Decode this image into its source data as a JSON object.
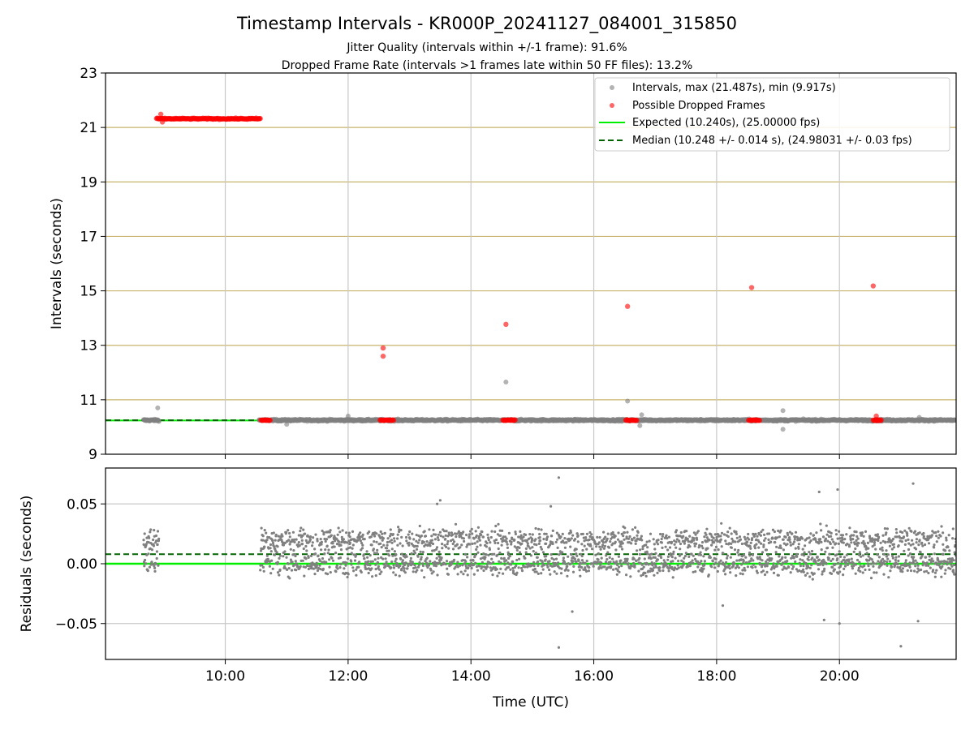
{
  "title": "Timestamp Intervals - KR000P_20241127_084001_315850",
  "subtitle_line1": "Jitter Quality (intervals within +/-1 frame): 91.6%",
  "subtitle_line2": "Dropped Frame Rate (intervals >1 frames late within 50 FF files): 13.2%",
  "colors": {
    "intervals": "#808080",
    "dropped": "#ff0000",
    "expected": "#00ee00",
    "median": "#006400",
    "hgrid_top": "#c8b46e",
    "grid": "#c8c8c8"
  },
  "chart_data": [
    {
      "type": "scatter",
      "ylabel": "Intervals (seconds)",
      "xlabel": "",
      "xlim_hours": [
        8.05,
        21.9
      ],
      "ylim": [
        9,
        23
      ],
      "yticks": [
        9,
        11,
        13,
        15,
        17,
        19,
        21,
        23
      ],
      "xticks_hours": [
        10,
        12,
        14,
        16,
        18,
        20
      ],
      "xtick_labels": [
        "10:00",
        "12:00",
        "14:00",
        "16:00",
        "18:00",
        "20:00"
      ],
      "grid": true,
      "legend_position": "top-right",
      "legend": [
        "Intervals, max (21.487s), min (9.917s)",
        "Possible Dropped Frames",
        "Expected (10.240s), (25.00000 fps)",
        "Median (10.248 +/- 0.014 s), (24.98031 +/- 0.03 fps)"
      ],
      "expected_value": 10.24,
      "median_value": 10.248,
      "series": [
        {
          "name": "Intervals, max (21.487s), min (9.917s)",
          "baseline_value": 10.25,
          "segments_hours": [
            [
              8.67,
              8.92
            ],
            [
              10.55,
              21.9
            ]
          ],
          "outliers": [
            {
              "x": 8.9,
              "y": 10.7
            },
            {
              "x": 14.57,
              "y": 11.65
            },
            {
              "x": 16.55,
              "y": 10.95
            },
            {
              "x": 16.78,
              "y": 10.45
            },
            {
              "x": 19.08,
              "y": 10.6
            },
            {
              "x": 19.08,
              "y": 9.917
            },
            {
              "x": 16.75,
              "y": 10.05
            },
            {
              "x": 12.0,
              "y": 10.4
            },
            {
              "x": 11.0,
              "y": 10.1
            },
            {
              "x": 21.3,
              "y": 10.35
            }
          ]
        },
        {
          "name": "Possible Dropped Frames",
          "band_hours": [
            8.88,
            10.57
          ],
          "band_value": 21.32,
          "band_peak": {
            "x": 8.95,
            "y": 21.487
          },
          "clusters_hours": [
            [
              10.58,
              10.73
            ],
            [
              12.52,
              12.74
            ],
            [
              14.52,
              14.72
            ],
            [
              16.52,
              16.7
            ],
            [
              18.52,
              18.7
            ],
            [
              20.55,
              20.68
            ]
          ],
          "cluster_value": 10.25,
          "points": [
            {
              "x": 12.57,
              "y": 12.9
            },
            {
              "x": 12.57,
              "y": 12.6
            },
            {
              "x": 14.57,
              "y": 13.77
            },
            {
              "x": 16.55,
              "y": 14.43
            },
            {
              "x": 18.57,
              "y": 15.12
            },
            {
              "x": 20.55,
              "y": 15.18
            },
            {
              "x": 20.6,
              "y": 10.4
            }
          ]
        }
      ]
    },
    {
      "type": "scatter",
      "ylabel": "Residuals (seconds)",
      "xlabel": "Time (UTC)",
      "xlim_hours": [
        8.05,
        21.9
      ],
      "ylim": [
        -0.08,
        0.08
      ],
      "yticks": [
        -0.05,
        0.0,
        0.05
      ],
      "ytick_labels": [
        "−0.05",
        "0.00",
        "0.05"
      ],
      "xticks_hours": [
        10,
        12,
        14,
        16,
        18,
        20
      ],
      "xtick_labels": [
        "10:00",
        "12:00",
        "14:00",
        "16:00",
        "18:00",
        "20:00"
      ],
      "grid": true,
      "expected_value": 0.0,
      "median_value": 0.008,
      "series": [
        {
          "name": "Residuals",
          "segments_hours": [
            [
              8.67,
              8.92
            ],
            [
              10.57,
              21.9
            ]
          ],
          "levels": [
            0.0,
            0.02
          ],
          "spread": 0.012,
          "extremes": [
            {
              "x": 15.43,
              "y": 0.072
            },
            {
              "x": 15.43,
              "y": -0.07
            },
            {
              "x": 21.0,
              "y": -0.069
            },
            {
              "x": 21.2,
              "y": 0.067
            },
            {
              "x": 19.97,
              "y": 0.062
            },
            {
              "x": 20.0,
              "y": -0.05
            },
            {
              "x": 19.75,
              "y": -0.047
            },
            {
              "x": 21.28,
              "y": -0.048
            },
            {
              "x": 19.67,
              "y": 0.06
            },
            {
              "x": 13.45,
              "y": 0.05
            },
            {
              "x": 13.5,
              "y": 0.053
            },
            {
              "x": 15.3,
              "y": 0.048
            },
            {
              "x": 15.65,
              "y": -0.04
            },
            {
              "x": 18.1,
              "y": -0.035
            }
          ]
        }
      ]
    }
  ]
}
